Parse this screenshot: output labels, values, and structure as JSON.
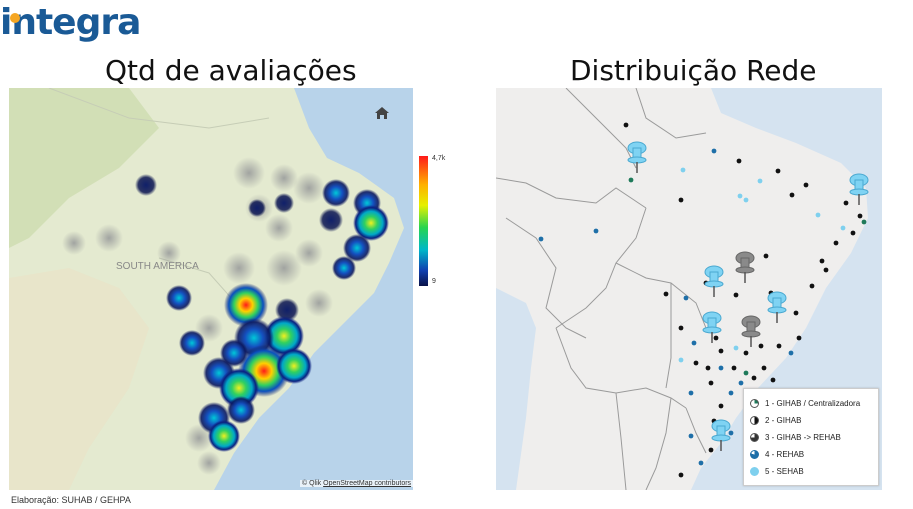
{
  "logo": {
    "text": "integra"
  },
  "titles": {
    "left": "Qtd de avaliações",
    "right": "Distribuição Rede"
  },
  "left_map": {
    "region_label": "SOUTH AMERICA",
    "scale_max": "4,7k",
    "scale_min": "9",
    "attribution_prefix": "© Qlik",
    "attribution_link": "OpenStreetMap contributors",
    "home_icon": "home-icon"
  },
  "legend": {
    "items": [
      {
        "label": "1 - GIHAB / Centralizadora",
        "color": "#1f7a5a"
      },
      {
        "label": "2 - GIHAB",
        "color": "#111111"
      },
      {
        "label": "3 - GIHAB -> REHAB",
        "color": "#333333"
      },
      {
        "label": "4 - REHAB",
        "color": "#1e6fa8"
      },
      {
        "label": "5 - SEHAB",
        "color": "#7fd0ee"
      }
    ]
  },
  "footer": "Elaboração: SUHAB / GEHPA"
}
